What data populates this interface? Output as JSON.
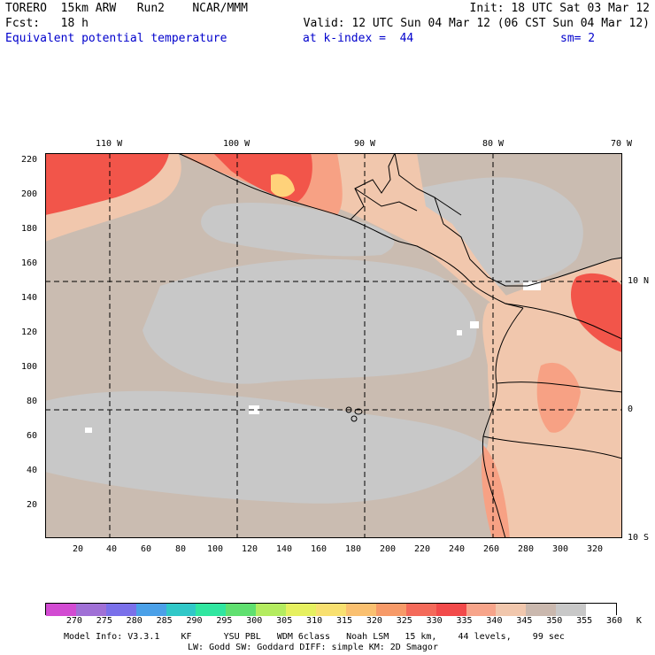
{
  "header": {
    "line1_left": "TORERO  15km ARW   Run2    NCAR/MMM",
    "line1_right": "Init: 18 UTC Sat 03 Mar 12",
    "line2_left": "Fcst:   18 h",
    "line2_right": "Valid: 12 UTC Sun 04 Mar 12 (06 CST Sun 04 Mar 12)",
    "line3_field": "Equivalent potential temperature",
    "line3_level": "at k-index =  44",
    "line3_sm": "sm= 2"
  },
  "map": {
    "lon_labels": [
      "110 W",
      "100 W",
      "90 W",
      "80 W",
      "70 W"
    ],
    "lat_labels": [
      "10 N",
      "0",
      "10 S"
    ],
    "x_ticks": [
      "20",
      "40",
      "60",
      "80",
      "100",
      "120",
      "140",
      "160",
      "180",
      "200",
      "220",
      "240",
      "260",
      "280",
      "300",
      "320"
    ],
    "y_ticks": [
      "220",
      "200",
      "180",
      "160",
      "140",
      "120",
      "100",
      "80",
      "60",
      "40",
      "20"
    ],
    "grid_range": {
      "x": [
        1,
        334
      ],
      "y": [
        1,
        224
      ]
    },
    "colors": {
      "ocean_cool": "#c8c8c8",
      "ocean_warm": "#cabcb1",
      "warm_340": "#f1c7ad",
      "warm_335": "#f7a184",
      "hot_330": "#f2554a",
      "peak_320": "#ffd27a",
      "cold_spot": "#ffffff"
    }
  },
  "colorbar": {
    "labels": [
      "270",
      "275",
      "280",
      "285",
      "290",
      "295",
      "300",
      "305",
      "310",
      "315",
      "320",
      "325",
      "330",
      "335",
      "340",
      "345",
      "350",
      "355",
      "360",
      "K"
    ],
    "colors": [
      "#d24bd2",
      "#a070d6",
      "#7a70ea",
      "#4aa0e8",
      "#30c8c8",
      "#30e6a0",
      "#60e070",
      "#b4ec60",
      "#e6f060",
      "#f8e070",
      "#fac070",
      "#f79a68",
      "#f46a5a",
      "#f24a4a",
      "#f7a48a",
      "#f1c7ad",
      "#cab8ae",
      "#c8c8c8",
      "#ffffff"
    ]
  },
  "footer": {
    "line1": "Model Info: V3.3.1    KF      YSU PBL   WDM 6class   Noah LSM   15 km,    44 levels,    99 sec",
    "line2": "LW: Godd SW: Goddard DIFF: simple KM: 2D Smagor"
  }
}
